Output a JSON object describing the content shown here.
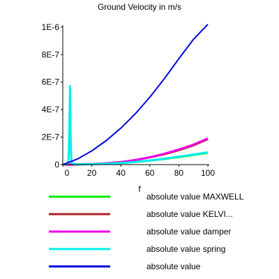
{
  "chart_data": {
    "type": "line",
    "title": "Ground Velocity in m/s",
    "xlabel": "f",
    "ylabel": "",
    "xlim": [
      0,
      100
    ],
    "ylim": [
      0,
      1.05e-06
    ],
    "x_ticks": [
      0,
      20,
      40,
      60,
      80,
      100
    ],
    "x_tick_labels": [
      "0",
      "20",
      "40",
      "60",
      "80",
      "100"
    ],
    "y_ticks": [
      0,
      2e-07,
      4e-07,
      6e-07,
      8e-07,
      1e-06
    ],
    "y_tick_labels": [
      "0",
      "2E-7",
      "4E-7",
      "6E-7",
      "8E-7",
      "1E-6"
    ],
    "grid": false,
    "legend_position": "bottom",
    "series": [
      {
        "name": "absolute value MAXWELL",
        "color": "#00ee00",
        "x": [
          0,
          10,
          20,
          30,
          40,
          50,
          60,
          70,
          80,
          90,
          100
        ],
        "y": [
          0,
          1e-09,
          3e-09,
          6e-09,
          1.1e-08,
          1.9e-08,
          2.9e-08,
          4.1e-08,
          5.5e-08,
          7e-08,
          8.5e-08
        ]
      },
      {
        "name": "absolute value KELVI...",
        "color": "#aa2222",
        "x": [
          0,
          10,
          20,
          30,
          40,
          50,
          60,
          70,
          80,
          90,
          100
        ],
        "y": [
          0,
          1e-09,
          4e-09,
          9e-09,
          1.8e-08,
          3.3e-08,
          5.2e-08,
          7.6e-08,
          1.05e-07,
          1.4e-07,
          1.85e-07
        ]
      },
      {
        "name": "absolute value damper",
        "color": "#ee00ee",
        "x": [
          0,
          10,
          20,
          30,
          40,
          50,
          60,
          70,
          80,
          90,
          100
        ],
        "y": [
          0,
          1e-09,
          4e-09,
          9.5e-09,
          1.9e-08,
          3.4e-08,
          5.4e-08,
          7.9e-08,
          1.1e-07,
          1.45e-07,
          1.9e-07
        ]
      },
      {
        "name": "absolute value spring",
        "color": "#00eeee",
        "x": [
          0,
          3,
          4,
          4.5,
          5,
          5.5,
          6,
          7,
          10,
          20,
          30,
          40,
          50,
          60,
          70,
          80,
          90,
          100
        ],
        "y": [
          0,
          5e-09,
          3e-08,
          2.5e-07,
          5.7e-07,
          1.5e-07,
          2e-08,
          4e-09,
          1e-09,
          3e-09,
          6e-09,
          1.2e-08,
          2e-08,
          3e-08,
          4.3e-08,
          5.8e-08,
          7.3e-08,
          9e-08
        ]
      },
      {
        "name": "absolute value",
        "color": "#0000dd",
        "x": [
          0,
          10,
          20,
          30,
          40,
          50,
          60,
          70,
          80,
          90,
          100
        ],
        "y": [
          0,
          4e-08,
          1e-07,
          1.75e-07,
          2.65e-07,
          3.7e-07,
          4.9e-07,
          6.25e-07,
          7.7e-07,
          9.1e-07,
          1.02e-06
        ]
      }
    ]
  }
}
